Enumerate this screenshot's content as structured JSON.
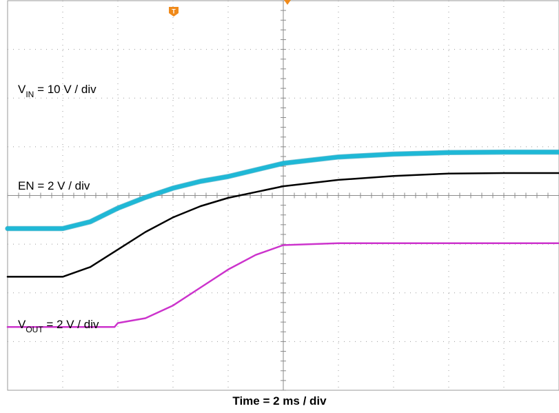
{
  "chart_data": {
    "type": "line",
    "title": "",
    "xlabel": "Time = 2 ms / div",
    "ylabel": "",
    "grid": true,
    "x_divisions": 10,
    "y_divisions": 8,
    "trigger_marker": "T",
    "series": [
      {
        "name": "VIN = 10 V / div",
        "label_main": "V",
        "label_sub": "IN",
        "label_rest": " = 10 V / div",
        "color": "#000000",
        "x": [
          0,
          1.0,
          1.5,
          2.0,
          2.5,
          3.0,
          3.5,
          4.0,
          5.0,
          6.0,
          7.0,
          8.0,
          9.0,
          10.0
        ],
        "y": [
          -1.67,
          -1.67,
          -1.47,
          -1.11,
          -0.75,
          -0.45,
          -0.22,
          -0.05,
          0.19,
          0.32,
          0.4,
          0.45,
          0.46,
          0.46
        ]
      },
      {
        "name": "EN = 2 V / div",
        "label_main": "EN = 2 V / div",
        "label_sub": "",
        "label_rest": "",
        "color": "#1fb8d6",
        "x": [
          0,
          1.0,
          1.5,
          2.0,
          2.5,
          3.0,
          3.5,
          4.0,
          5.0,
          6.0,
          7.0,
          8.0,
          9.0,
          10.0
        ],
        "y": [
          -0.68,
          -0.68,
          -0.54,
          -0.26,
          -0.04,
          0.15,
          0.29,
          0.39,
          0.66,
          0.79,
          0.85,
          0.88,
          0.89,
          0.89
        ]
      },
      {
        "name": "VOUT = 2 V / div",
        "label_main": "V",
        "label_sub": "OUT",
        "label_rest": " = 2 V / div",
        "color": "#cc33cc",
        "x": [
          0,
          1.0,
          1.94,
          2.0,
          2.5,
          3.0,
          3.5,
          4.0,
          4.5,
          5.0,
          6.0,
          7.0,
          8.0,
          9.0,
          10.0
        ],
        "y": [
          -2.7,
          -2.7,
          -2.7,
          -2.62,
          -2.52,
          -2.26,
          -1.89,
          -1.52,
          -1.22,
          -1.02,
          -0.98,
          -0.98,
          -0.98,
          -0.98,
          -0.98
        ]
      }
    ]
  }
}
